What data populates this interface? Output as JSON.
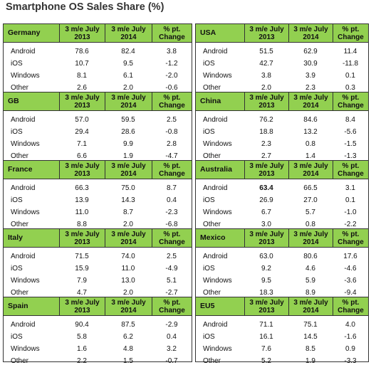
{
  "title": "Smartphone OS Sales Share (%)",
  "chart_data": {
    "type": "table",
    "title": "Smartphone OS Sales Share (%)",
    "columns": [
      "3 m/e July 2013",
      "3 m/e July 2014",
      "% pt. Change"
    ],
    "os": [
      "Android",
      "iOS",
      "Windows",
      "Other"
    ],
    "bold_cells": [
      {
        "region": "Australia",
        "os": "Android",
        "column": "3 m/e July 2013"
      }
    ],
    "colors": {
      "header_bg": "#92d050",
      "border": "#333333"
    },
    "regions": [
      {
        "name": "Germany",
        "rows": [
          [
            "Android",
            "78.6",
            "82.4",
            "3.8"
          ],
          [
            "iOS",
            "10.7",
            "9.5",
            "-1.2"
          ],
          [
            "Windows",
            "8.1",
            "6.1",
            "-2.0"
          ],
          [
            "Other",
            "2.6",
            "2.0",
            "-0.6"
          ]
        ]
      },
      {
        "name": "USA",
        "rows": [
          [
            "Android",
            "51.5",
            "62.9",
            "11.4"
          ],
          [
            "iOS",
            "42.7",
            "30.9",
            "-11.8"
          ],
          [
            "Windows",
            "3.8",
            "3.9",
            "0.1"
          ],
          [
            "Other",
            "2.0",
            "2.3",
            "0.3"
          ]
        ]
      },
      {
        "name": "GB",
        "rows": [
          [
            "Android",
            "57.0",
            "59.5",
            "2.5"
          ],
          [
            "iOS",
            "29.4",
            "28.6",
            "-0.8"
          ],
          [
            "Windows",
            "7.1",
            "9.9",
            "2.8"
          ],
          [
            "Other",
            "6.6",
            "1.9",
            "-4.7"
          ]
        ]
      },
      {
        "name": "China",
        "rows": [
          [
            "Android",
            "76.2",
            "84.6",
            "8.4"
          ],
          [
            "iOS",
            "18.8",
            "13.2",
            "-5.6"
          ],
          [
            "Windows",
            "2.3",
            "0.8",
            "-1.5"
          ],
          [
            "Other",
            "2.7",
            "1.4",
            "-1.3"
          ]
        ]
      },
      {
        "name": "France",
        "rows": [
          [
            "Android",
            "66.3",
            "75.0",
            "8.7"
          ],
          [
            "iOS",
            "13.9",
            "14.3",
            "0.4"
          ],
          [
            "Windows",
            "11.0",
            "8.7",
            "-2.3"
          ],
          [
            "Other",
            "8.8",
            "2.0",
            "-6.8"
          ]
        ]
      },
      {
        "name": "Australia",
        "rows": [
          [
            "Android",
            "63.4",
            "66.5",
            "3.1"
          ],
          [
            "iOS",
            "26.9",
            "27.0",
            "0.1"
          ],
          [
            "Windows",
            "6.7",
            "5.7",
            "-1.0"
          ],
          [
            "Other",
            "3.0",
            "0.8",
            "-2.2"
          ]
        ]
      },
      {
        "name": "Italy",
        "rows": [
          [
            "Android",
            "71.5",
            "74.0",
            "2.5"
          ],
          [
            "iOS",
            "15.9",
            "11.0",
            "-4.9"
          ],
          [
            "Windows",
            "7.9",
            "13.0",
            "5.1"
          ],
          [
            "Other",
            "4.7",
            "2.0",
            "-2.7"
          ]
        ]
      },
      {
        "name": "Mexico",
        "rows": [
          [
            "Android",
            "63.0",
            "80.6",
            "17.6"
          ],
          [
            "iOS",
            "9.2",
            "4.6",
            "-4.6"
          ],
          [
            "Windows",
            "9.5",
            "5.9",
            "-3.6"
          ],
          [
            "Other",
            "18.3",
            "8.9",
            "-9.4"
          ]
        ]
      },
      {
        "name": "Spain",
        "rows": [
          [
            "Android",
            "90.4",
            "87.5",
            "-2.9"
          ],
          [
            "iOS",
            "5.8",
            "6.2",
            "0.4"
          ],
          [
            "Windows",
            "1.6",
            "4.8",
            "3.2"
          ],
          [
            "Other",
            "2.2",
            "1.5",
            "-0.7"
          ]
        ]
      },
      {
        "name": "EU5",
        "rows": [
          [
            "Android",
            "71.1",
            "75.1",
            "4.0"
          ],
          [
            "iOS",
            "16.1",
            "14.5",
            "-1.6"
          ],
          [
            "Windows",
            "7.6",
            "8.5",
            "0.9"
          ],
          [
            "Other",
            "5.2",
            "1.9",
            "-3.3"
          ]
        ]
      }
    ]
  }
}
